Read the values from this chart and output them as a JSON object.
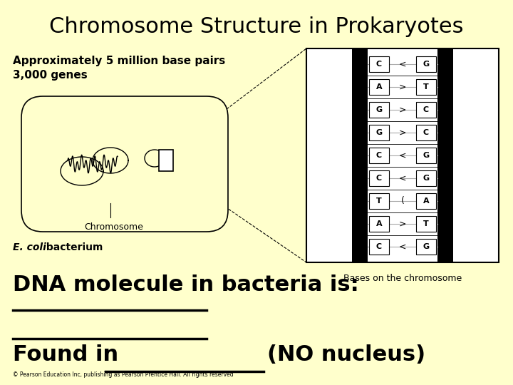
{
  "bg_color": "#FFFFCC",
  "title": "Chromosome Structure in Prokaryotes",
  "title_fontsize": 22,
  "subtitle_line1": "Approximately 5 million base pairs",
  "subtitle_line2": "3,000 genes",
  "subtitle_fontsize": 11,
  "chromosome_label": "Chromosome",
  "ecoli_label_italic": "E. coli",
  "ecoli_label_normal": " bacterium",
  "bases_label": "Bases on the chromosome",
  "dna_text": "DNA molecule in bacteria is:",
  "dna_fontsize": 22,
  "found_text1": "Found in",
  "found_text2": "(NO nucleus)",
  "found_fontsize": 22,
  "copyright": "© Pearson Education Inc, publishing as Pearson Prentice Hall. All rights reserved",
  "base_left": [
    "C",
    "A",
    "G",
    "G",
    "C",
    "C",
    "T",
    "A",
    "C"
  ],
  "base_right": [
    "G",
    "T",
    "C",
    "C",
    "G",
    "G",
    "A",
    "T",
    "G"
  ],
  "connector": [
    "<",
    ">",
    ">",
    ">",
    "<",
    "<",
    "(",
    ">",
    "<"
  ]
}
